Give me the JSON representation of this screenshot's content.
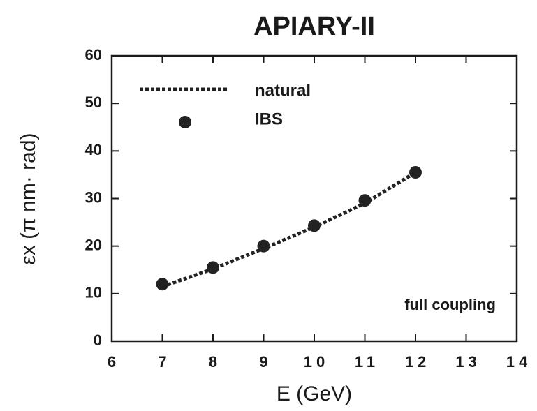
{
  "chart_data": {
    "type": "line",
    "title": "APIARY-II",
    "x_label": "E (GeV)",
    "y_label": "εx (π nm· rad)",
    "annotation": "full coupling",
    "x": [
      7,
      8,
      9,
      10,
      11,
      12
    ],
    "series": [
      {
        "name": "natural",
        "color": "#222222",
        "linestyle": "dotted",
        "values": [
          11.5,
          15.2,
          19.5,
          24,
          29,
          35.5
        ]
      },
      {
        "name": "IBS",
        "color": "#222222",
        "marker": "circle",
        "values": [
          12,
          15.5,
          20,
          24.3,
          29.6,
          35.5
        ]
      }
    ],
    "xlim": [
      6,
      14
    ],
    "xticks": [
      6,
      7,
      8,
      9,
      10,
      11,
      12,
      13,
      14
    ],
    "ylim": [
      0,
      60
    ],
    "yticks": [
      0,
      10,
      20,
      30,
      40,
      50,
      60
    ],
    "legend": "upper left"
  }
}
